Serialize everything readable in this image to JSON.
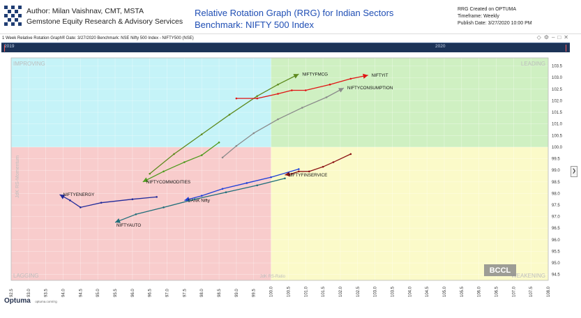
{
  "header": {
    "author_line1": "Author: Milan Vaishnav, CMT, MSTA",
    "author_line2": "Gemstone Equity Research & Advisory Services",
    "title_line1": "Relative Rotation Graph (RRG) for Indian Sectors",
    "title_line2": "Benchmark: NIFTY 500 Index",
    "meta_line1": "RRG Created on OPTUMA",
    "meta_line2": "Timeframe: Weekly",
    "meta_line3": "Publish Date: 3/27/2020 10:00 PM"
  },
  "subbar": {
    "text": "1 Week Relative Rotation Graph®   Date: 3/27/2020  Benchmark: NSE Nifty 500 Index - NIFTY500 (NSE)"
  },
  "toolbar_icons": [
    "share-icon",
    "settings-icon",
    "minimize-icon",
    "restore-icon",
    "close-icon"
  ],
  "timeline": {
    "label_left": "2019",
    "label_right": "2020"
  },
  "footer": {
    "brand": "Optuma",
    "sub": "optuma.com/rrg"
  },
  "watermark": "BCCL",
  "colors": {
    "improving": "#c5f3f8",
    "leading": "#cff0c2",
    "weakening": "#fbfac9",
    "lagging": "#f8cccc",
    "title": "#1f4eb4",
    "timeline": "#1c3357"
  },
  "chart_data": {
    "type": "scatter",
    "title": "Relative Rotation Graph (RRG) for Indian Sectors",
    "xlabel": "JdK RS-Ratio",
    "ylabel": "JdK RS-Momentum",
    "xlim": [
      92.5,
      108.0
    ],
    "ylim": [
      94.25,
      103.85
    ],
    "center": [
      100.0,
      100.0
    ],
    "x_ticks": [
      92.5,
      93.0,
      93.5,
      94.0,
      94.5,
      95.0,
      95.5,
      96.0,
      96.5,
      97.0,
      97.5,
      98.0,
      98.5,
      99.0,
      99.5,
      100.0,
      100.5,
      101.0,
      101.5,
      102.0,
      102.5,
      103.0,
      103.5,
      104.0,
      104.5,
      105.0,
      105.5,
      106.0,
      106.5,
      107.0,
      107.5,
      108.0
    ],
    "y_ticks": [
      94.5,
      95.0,
      95.5,
      96.0,
      96.5,
      97.0,
      97.5,
      98.0,
      98.5,
      99.0,
      99.5,
      100.0,
      100.5,
      101.0,
      101.5,
      102.0,
      102.5,
      103.0,
      103.5
    ],
    "quadrants": {
      "top_left": "IMPROVING",
      "top_right": "LEADING",
      "bottom_left": "LAGGING",
      "bottom_right": "WEAKENING"
    },
    "series": [
      {
        "name": "NIFTYFMCG",
        "color": "#5e8a1e",
        "label_pos": "right",
        "points": [
          [
            96.5,
            98.85
          ],
          [
            97.2,
            99.7
          ],
          [
            98.0,
            100.55
          ],
          [
            98.8,
            101.4
          ],
          [
            99.6,
            102.2
          ],
          [
            100.2,
            102.7
          ],
          [
            100.8,
            103.15
          ]
        ]
      },
      {
        "name": "NIFTYIT",
        "color": "#e01414",
        "label_pos": "right",
        "points": [
          [
            99.0,
            102.1
          ],
          [
            99.6,
            102.1
          ],
          [
            100.2,
            102.3
          ],
          [
            100.6,
            102.45
          ],
          [
            101.0,
            102.45
          ],
          [
            101.7,
            102.7
          ],
          [
            102.3,
            102.95
          ],
          [
            102.8,
            103.1
          ]
        ]
      },
      {
        "name": "NIFTYCONSUMPTION",
        "color": "#8a8a8a",
        "label_pos": "right",
        "points": [
          [
            98.6,
            99.55
          ],
          [
            99.0,
            100.05
          ],
          [
            99.5,
            100.6
          ],
          [
            100.2,
            101.2
          ],
          [
            100.9,
            101.7
          ],
          [
            101.6,
            102.15
          ],
          [
            102.1,
            102.55
          ]
        ]
      },
      {
        "name": "NIFTYCOMMODITIES",
        "color": "#4f9a1e",
        "label_pos": "right",
        "points": [
          [
            98.5,
            100.2
          ],
          [
            98.0,
            99.65
          ],
          [
            97.5,
            99.35
          ],
          [
            96.9,
            98.95
          ],
          [
            96.3,
            98.5
          ]
        ]
      },
      {
        "name": "NIFTYFINSERVICE",
        "color": "#8c1414",
        "label_pos": "right",
        "points": [
          [
            102.3,
            99.7
          ],
          [
            101.8,
            99.35
          ],
          [
            101.5,
            99.15
          ],
          [
            101.1,
            98.95
          ],
          [
            100.8,
            98.95
          ],
          [
            100.6,
            98.85
          ],
          [
            100.4,
            98.8
          ]
        ]
      },
      {
        "name": "NIFTYENERGY",
        "color": "#202a9a",
        "label_pos": "right",
        "points": [
          [
            96.7,
            97.85
          ],
          [
            96.0,
            97.75
          ],
          [
            95.1,
            97.6
          ],
          [
            94.5,
            97.4
          ],
          [
            94.2,
            97.7
          ],
          [
            93.9,
            97.95
          ]
        ]
      },
      {
        "name": "BANK Nifty",
        "color": "#1e3fd8",
        "label_pos": "right",
        "points": [
          [
            100.8,
            99.05
          ],
          [
            100.0,
            98.7
          ],
          [
            99.3,
            98.45
          ],
          [
            98.6,
            98.2
          ],
          [
            98.0,
            97.9
          ],
          [
            97.5,
            97.7
          ]
        ]
      },
      {
        "name": "NIFTYAUTO",
        "color": "#1f6e7a",
        "label_pos": "below",
        "points": [
          [
            100.4,
            98.65
          ],
          [
            99.6,
            98.35
          ],
          [
            98.7,
            98.05
          ],
          [
            97.8,
            97.75
          ],
          [
            96.9,
            97.4
          ],
          [
            96.1,
            97.1
          ],
          [
            95.5,
            96.75
          ]
        ]
      }
    ]
  }
}
